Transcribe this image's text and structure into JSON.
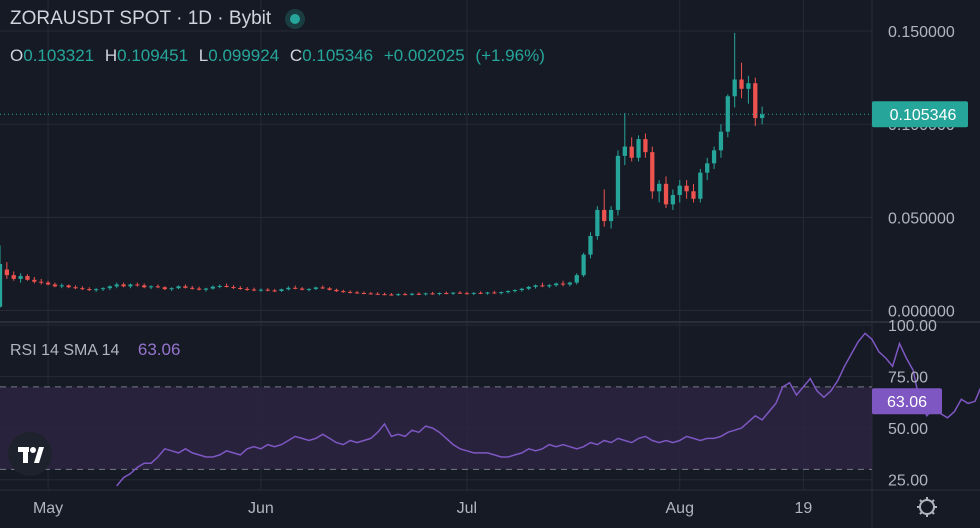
{
  "header": {
    "symbol": "ZORAUSDT SPOT",
    "interval": "1D",
    "exchange": "Bybit",
    "status": "market-open-dot"
  },
  "ohlc": {
    "o_label": "O",
    "o_value": "0.103321",
    "h_label": "H",
    "h_value": "0.109451",
    "l_label": "L",
    "l_value": "0.099924",
    "c_label": "C",
    "c_value": "0.105346",
    "change": "+0.002025",
    "change_pct": "(+1.96%)"
  },
  "last_price_label": "0.105346",
  "rsi": {
    "label": "RSI",
    "length": "14",
    "ma_type": "SMA",
    "ma_length": "14",
    "value": "63.06",
    "value_label": "63.06"
  },
  "colors": {
    "background": "#161a25",
    "up": "#26a69a",
    "down": "#ef5350",
    "rsi_line": "#7e57c2",
    "rsi_band": "#2b2442",
    "grid": "#262a36"
  },
  "icons": {
    "logo": "tradingview-logo-icon",
    "settings": "gear-icon"
  },
  "chart_data": [
    {
      "type": "candlestick",
      "title": "ZORAUSDT SPOT · 1D · Bybit",
      "x_tick_labels": [
        "May",
        "Jun",
        "Jul",
        "Aug",
        "19"
      ],
      "x_tick_dates": [
        "2025-05-01",
        "2025-06-01",
        "2025-07-01",
        "2025-08-01",
        "2025-08-19"
      ],
      "y_tick_labels": [
        "0.000000",
        "0.050000",
        "0.100000",
        "0.150000"
      ],
      "y_tick_values": [
        0.0,
        0.05,
        0.1,
        0.15
      ],
      "ylim": [
        -0.004,
        0.157
      ],
      "xlim": [
        "2025-04-24",
        "2025-08-29"
      ],
      "grid": true,
      "series": [
        {
          "start_date": "2025-04-24",
          "interval": "1D",
          "ohlc": [
            [
              0.002,
              0.035,
              0.0015,
              0.025
            ],
            [
              0.022,
              0.026,
              0.017,
              0.019
            ],
            [
              0.019,
              0.021,
              0.016,
              0.017
            ],
            [
              0.017,
              0.02,
              0.015,
              0.0185
            ],
            [
              0.0185,
              0.0195,
              0.016,
              0.0165
            ],
            [
              0.0165,
              0.018,
              0.0145,
              0.0155
            ],
            [
              0.0155,
              0.017,
              0.014,
              0.015
            ],
            [
              0.015,
              0.016,
              0.0135,
              0.014
            ],
            [
              0.014,
              0.015,
              0.0125,
              0.013
            ],
            [
              0.013,
              0.0145,
              0.012,
              0.0135
            ],
            [
              0.0135,
              0.014,
              0.012,
              0.0125
            ],
            [
              0.0125,
              0.0135,
              0.0115,
              0.012
            ],
            [
              0.012,
              0.013,
              0.011,
              0.0115
            ],
            [
              0.0115,
              0.0125,
              0.0105,
              0.011
            ],
            [
              0.011,
              0.012,
              0.01,
              0.0115
            ],
            [
              0.0115,
              0.0125,
              0.0105,
              0.012
            ],
            [
              0.012,
              0.0135,
              0.011,
              0.013
            ],
            [
              0.013,
              0.015,
              0.012,
              0.014
            ],
            [
              0.014,
              0.015,
              0.0125,
              0.013
            ],
            [
              0.013,
              0.0145,
              0.012,
              0.014
            ],
            [
              0.014,
              0.015,
              0.0128,
              0.0135
            ],
            [
              0.0135,
              0.0145,
              0.012,
              0.0125
            ],
            [
              0.0125,
              0.0135,
              0.0115,
              0.013
            ],
            [
              0.013,
              0.014,
              0.012,
              0.0125
            ],
            [
              0.0125,
              0.013,
              0.011,
              0.0115
            ],
            [
              0.0115,
              0.0125,
              0.0105,
              0.012
            ],
            [
              0.012,
              0.0135,
              0.0115,
              0.013
            ],
            [
              0.013,
              0.014,
              0.0118,
              0.0122
            ],
            [
              0.0122,
              0.0132,
              0.0112,
              0.0118
            ],
            [
              0.0118,
              0.0128,
              0.0108,
              0.0112
            ],
            [
              0.0112,
              0.0122,
              0.0102,
              0.0118
            ],
            [
              0.0118,
              0.0135,
              0.0112,
              0.0128
            ],
            [
              0.0128,
              0.014,
              0.012,
              0.0132
            ],
            [
              0.0132,
              0.0145,
              0.0124,
              0.0126
            ],
            [
              0.0126,
              0.0136,
              0.0116,
              0.0121
            ],
            [
              0.0121,
              0.0131,
              0.0111,
              0.0116
            ],
            [
              0.0116,
              0.0126,
              0.0106,
              0.0113
            ],
            [
              0.0113,
              0.0123,
              0.0104,
              0.0109
            ],
            [
              0.0109,
              0.0119,
              0.0101,
              0.0112
            ],
            [
              0.0112,
              0.012,
              0.0103,
              0.0108
            ],
            [
              0.0108,
              0.0116,
              0.0099,
              0.0105
            ],
            [
              0.0105,
              0.0118,
              0.01,
              0.0114
            ],
            [
              0.0114,
              0.013,
              0.0108,
              0.0122
            ],
            [
              0.0122,
              0.0134,
              0.0114,
              0.0118
            ],
            [
              0.0118,
              0.0126,
              0.0108,
              0.0112
            ],
            [
              0.0112,
              0.012,
              0.0103,
              0.0116
            ],
            [
              0.0116,
              0.0128,
              0.011,
              0.0124
            ],
            [
              0.0124,
              0.0134,
              0.0116,
              0.0119
            ],
            [
              0.0119,
              0.0126,
              0.0108,
              0.0111
            ],
            [
              0.0111,
              0.0118,
              0.01,
              0.0104
            ],
            [
              0.0104,
              0.0112,
              0.0095,
              0.01
            ],
            [
              0.01,
              0.0108,
              0.0092,
              0.0097
            ],
            [
              0.0097,
              0.0105,
              0.009,
              0.0094
            ],
            [
              0.0094,
              0.0102,
              0.0088,
              0.0092
            ],
            [
              0.0092,
              0.01,
              0.0086,
              0.009
            ],
            [
              0.009,
              0.0098,
              0.0084,
              0.0088
            ],
            [
              0.0088,
              0.0096,
              0.0082,
              0.0086
            ],
            [
              0.0086,
              0.0094,
              0.008,
              0.0084
            ],
            [
              0.0084,
              0.0092,
              0.0078,
              0.0088
            ],
            [
              0.0088,
              0.0096,
              0.0082,
              0.0086
            ],
            [
              0.0086,
              0.0095,
              0.008,
              0.009
            ],
            [
              0.009,
              0.0098,
              0.0083,
              0.0087
            ],
            [
              0.0087,
              0.0096,
              0.0081,
              0.0092
            ],
            [
              0.0092,
              0.01,
              0.0085,
              0.0089
            ],
            [
              0.0089,
              0.0097,
              0.0082,
              0.0094
            ],
            [
              0.0094,
              0.0102,
              0.0087,
              0.0091
            ],
            [
              0.0091,
              0.0099,
              0.0084,
              0.0096
            ],
            [
              0.0096,
              0.0104,
              0.0089,
              0.0093
            ],
            [
              0.0093,
              0.0101,
              0.0086,
              0.009
            ],
            [
              0.009,
              0.0098,
              0.0083,
              0.0095
            ],
            [
              0.0095,
              0.0103,
              0.0088,
              0.0092
            ],
            [
              0.0092,
              0.01,
              0.0085,
              0.0097
            ],
            [
              0.0097,
              0.0106,
              0.009,
              0.0094
            ],
            [
              0.0094,
              0.0102,
              0.0086,
              0.0099
            ],
            [
              0.0099,
              0.0108,
              0.0092,
              0.0105
            ],
            [
              0.0105,
              0.0114,
              0.0097,
              0.011
            ],
            [
              0.011,
              0.0122,
              0.0102,
              0.0117
            ],
            [
              0.0117,
              0.0132,
              0.011,
              0.0127
            ],
            [
              0.0127,
              0.014,
              0.0118,
              0.0135
            ],
            [
              0.0135,
              0.015,
              0.0125,
              0.013
            ],
            [
              0.013,
              0.0142,
              0.012,
              0.0136
            ],
            [
              0.0136,
              0.015,
              0.0128,
              0.0145
            ],
            [
              0.0145,
              0.016,
              0.013,
              0.014
            ],
            [
              0.014,
              0.0155,
              0.013,
              0.015
            ],
            [
              0.015,
              0.02,
              0.014,
              0.019
            ],
            [
              0.019,
              0.031,
              0.018,
              0.03
            ],
            [
              0.03,
              0.042,
              0.028,
              0.04
            ],
            [
              0.04,
              0.056,
              0.038,
              0.054
            ],
            [
              0.054,
              0.065,
              0.045,
              0.048
            ],
            [
              0.048,
              0.056,
              0.044,
              0.054
            ],
            [
              0.054,
              0.086,
              0.051,
              0.083
            ],
            [
              0.083,
              0.106,
              0.078,
              0.088
            ],
            [
              0.088,
              0.093,
              0.08,
              0.082
            ],
            [
              0.082,
              0.094,
              0.08,
              0.092
            ],
            [
              0.092,
              0.095,
              0.082,
              0.085
            ],
            [
              0.085,
              0.088,
              0.06,
              0.064
            ],
            [
              0.064,
              0.07,
              0.058,
              0.068
            ],
            [
              0.068,
              0.072,
              0.055,
              0.057
            ],
            [
              0.057,
              0.065,
              0.054,
              0.062
            ],
            [
              0.062,
              0.07,
              0.058,
              0.067
            ],
            [
              0.067,
              0.07,
              0.06,
              0.064
            ],
            [
              0.064,
              0.068,
              0.058,
              0.06
            ],
            [
              0.06,
              0.076,
              0.058,
              0.074
            ],
            [
              0.074,
              0.082,
              0.07,
              0.079
            ],
            [
              0.079,
              0.088,
              0.076,
              0.086
            ],
            [
              0.086,
              0.1,
              0.082,
              0.096
            ],
            [
              0.096,
              0.116,
              0.093,
              0.115
            ],
            [
              0.115,
              0.149,
              0.109,
              0.124
            ],
            [
              0.124,
              0.133,
              0.114,
              0.119
            ],
            [
              0.119,
              0.126,
              0.111,
              0.122
            ],
            [
              0.122,
              0.125,
              0.099,
              0.1033
            ],
            [
              0.1033,
              0.1095,
              0.0999,
              0.1053
            ]
          ]
        }
      ],
      "last_price": 0.105346
    },
    {
      "type": "line",
      "title": "RSI 14 SMA 14",
      "y_tick_labels": [
        "25.00",
        "50.00",
        "75.00",
        "100.00"
      ],
      "y_tick_values": [
        25,
        50,
        75,
        100
      ],
      "ylim": [
        20,
        100
      ],
      "bands": [
        30,
        70
      ],
      "grid": true,
      "series": [
        {
          "name": "RSI",
          "start_date": "2025-05-11",
          "values": [
            22,
            26,
            28,
            31,
            33,
            33,
            36,
            40,
            39,
            38,
            40,
            38,
            37,
            36,
            36,
            37,
            39,
            38,
            37,
            40,
            41,
            40,
            42,
            41,
            42,
            44,
            46,
            45,
            44,
            45,
            47,
            45,
            43,
            42,
            44,
            43,
            44,
            45,
            48,
            52,
            46,
            47,
            46,
            49,
            48,
            51,
            50,
            48,
            45,
            42,
            40,
            39,
            38,
            38,
            38,
            37,
            36,
            36,
            37,
            38,
            40,
            39,
            40,
            42,
            41,
            42,
            41,
            40,
            41,
            43,
            42,
            44,
            43,
            45,
            44,
            43,
            45,
            46,
            44,
            43,
            44,
            43,
            44,
            46,
            45,
            44,
            45,
            45,
            46,
            48,
            49,
            50,
            53,
            56,
            54,
            58,
            62,
            70,
            72,
            66,
            70,
            74,
            68,
            65,
            68,
            73,
            80,
            86,
            92,
            96,
            93,
            87,
            84,
            80,
            91,
            84,
            78,
            62,
            56,
            60,
            57,
            55,
            58,
            64,
            62,
            63,
            71,
            70,
            75,
            77,
            73,
            72,
            63,
            63.06
          ]
        }
      ],
      "last_value": 63.06
    }
  ]
}
